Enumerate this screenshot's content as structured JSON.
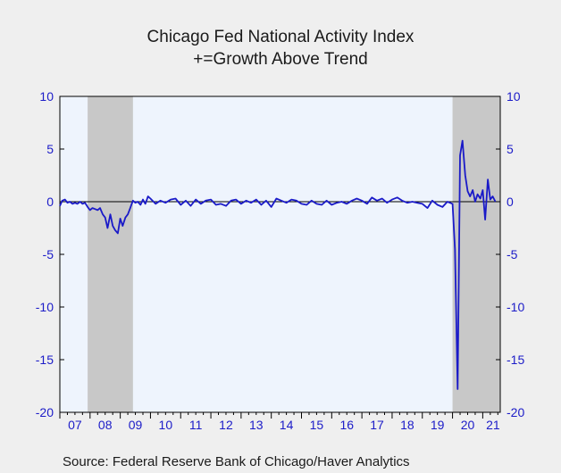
{
  "chart_data": {
    "type": "line",
    "title": "Chicago Fed National Activity Index",
    "subtitle": "+=Growth Above Trend",
    "source": "Source:  Federal Reserve Bank of Chicago/Haver Analytics",
    "ylim": [
      -20,
      10
    ],
    "yticks": [
      10,
      5,
      0,
      -5,
      -10,
      -15,
      -20
    ],
    "ytick_labels_left": [
      "10",
      "5",
      "0",
      "-5",
      "-10",
      "-15",
      "-20"
    ],
    "ytick_labels_right": [
      "10",
      "5",
      "0",
      "-5",
      "-10",
      "-15",
      "-20"
    ],
    "xlim": [
      2007.0,
      2021.58
    ],
    "xtick_labels": [
      "07",
      "08",
      "09",
      "10",
      "11",
      "12",
      "13",
      "14",
      "15",
      "16",
      "17",
      "18",
      "19",
      "20",
      "21"
    ],
    "recessions": [
      [
        2007.92,
        2009.42
      ],
      [
        2020.0,
        2021.58
      ]
    ],
    "colors": {
      "line": "#1a1ac8",
      "plot_bg": "#eef4fd",
      "recession": "#c8c8c8",
      "axis_text": "#1c1cc8",
      "zero_line": "#000000"
    },
    "grid": false,
    "series": [
      {
        "name": "",
        "x": [
          2007.0,
          2007.08,
          2007.17,
          2007.25,
          2007.33,
          2007.42,
          2007.5,
          2007.58,
          2007.67,
          2007.75,
          2007.83,
          2007.92,
          2008.0,
          2008.08,
          2008.17,
          2008.25,
          2008.33,
          2008.42,
          2008.5,
          2008.58,
          2008.67,
          2008.75,
          2008.83,
          2008.92,
          2009.0,
          2009.08,
          2009.17,
          2009.25,
          2009.33,
          2009.42,
          2009.5,
          2009.58,
          2009.67,
          2009.75,
          2009.83,
          2009.92,
          2010.0,
          2010.17,
          2010.33,
          2010.5,
          2010.67,
          2010.83,
          2011.0,
          2011.17,
          2011.33,
          2011.5,
          2011.67,
          2011.83,
          2012.0,
          2012.17,
          2012.33,
          2012.5,
          2012.67,
          2012.83,
          2013.0,
          2013.17,
          2013.33,
          2013.5,
          2013.67,
          2013.83,
          2014.0,
          2014.17,
          2014.33,
          2014.5,
          2014.67,
          2014.83,
          2015.0,
          2015.17,
          2015.33,
          2015.5,
          2015.67,
          2015.83,
          2016.0,
          2016.17,
          2016.33,
          2016.5,
          2016.67,
          2016.83,
          2017.0,
          2017.17,
          2017.33,
          2017.5,
          2017.67,
          2017.83,
          2018.0,
          2018.17,
          2018.33,
          2018.5,
          2018.67,
          2018.83,
          2019.0,
          2019.17,
          2019.33,
          2019.5,
          2019.67,
          2019.83,
          2020.0,
          2020.08,
          2020.17,
          2020.25,
          2020.33,
          2020.42,
          2020.5,
          2020.58,
          2020.67,
          2020.75,
          2020.83,
          2020.92,
          2021.0,
          2021.08,
          2021.17,
          2021.25,
          2021.33,
          2021.42
        ],
        "y": [
          -0.4,
          0.1,
          0.2,
          -0.1,
          0.0,
          -0.2,
          -0.1,
          -0.2,
          0.0,
          -0.2,
          -0.1,
          -0.5,
          -0.8,
          -0.6,
          -0.7,
          -0.8,
          -0.6,
          -1.2,
          -1.5,
          -2.5,
          -1.2,
          -2.3,
          -2.7,
          -3.0,
          -1.6,
          -2.3,
          -1.5,
          -1.2,
          -0.6,
          0.1,
          -0.1,
          0.0,
          -0.3,
          0.2,
          -0.2,
          0.5,
          0.3,
          -0.2,
          0.1,
          -0.1,
          0.2,
          0.3,
          -0.3,
          0.1,
          -0.4,
          0.2,
          -0.2,
          0.1,
          0.2,
          -0.3,
          -0.2,
          -0.4,
          0.1,
          0.2,
          -0.2,
          0.1,
          -0.1,
          0.2,
          -0.3,
          0.1,
          -0.5,
          0.3,
          0.1,
          -0.1,
          0.2,
          0.1,
          -0.2,
          -0.3,
          0.1,
          -0.2,
          -0.3,
          0.1,
          -0.3,
          -0.1,
          0.0,
          -0.2,
          0.1,
          0.3,
          0.1,
          -0.2,
          0.4,
          0.1,
          0.3,
          -0.1,
          0.2,
          0.4,
          0.1,
          -0.1,
          0.0,
          -0.1,
          -0.2,
          -0.6,
          0.1,
          -0.3,
          -0.5,
          0.0,
          -0.2,
          -4.5,
          -17.8,
          4.4,
          5.8,
          2.5,
          1.0,
          0.5,
          1.1,
          0.0,
          0.7,
          0.3,
          1.1,
          -1.7,
          2.1,
          0.2,
          0.5,
          0.0
        ]
      }
    ]
  }
}
